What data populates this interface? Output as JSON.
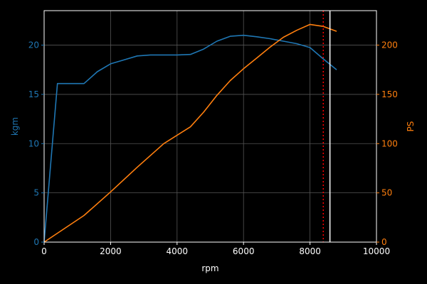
{
  "chart_data": {
    "type": "line",
    "background": "#000000",
    "grid": true,
    "x": {
      "label": "rpm",
      "lim": [
        0,
        10000
      ],
      "ticks": [
        0,
        2000,
        4000,
        6000,
        8000,
        10000
      ],
      "tick_labels": [
        "0",
        "2000",
        "4000",
        "6000",
        "8000",
        "10000"
      ],
      "color": "#ffffff"
    },
    "y_left": {
      "label": "kgm",
      "lim": [
        0,
        23.5
      ],
      "ticks": [
        0,
        5,
        10,
        15,
        20
      ],
      "tick_labels": [
        "0",
        "5",
        "10",
        "15",
        "20"
      ],
      "color": "#1f77b4"
    },
    "y_right": {
      "label": "PS",
      "lim": [
        0,
        235
      ],
      "ticks": [
        0,
        50,
        100,
        150,
        200
      ],
      "tick_labels": [
        "0",
        "50",
        "100",
        "150",
        "200"
      ],
      "color": "#ff7f0e"
    },
    "series": [
      {
        "axis": "left",
        "color": "#1f77b4",
        "x": [
          0,
          400,
          1200,
          1600,
          2000,
          2400,
          2800,
          3200,
          3600,
          4000,
          4400,
          4800,
          5200,
          5600,
          6000,
          6400,
          6800,
          7200,
          7600,
          8000,
          8400,
          8800
        ],
        "y": [
          0,
          16.1,
          16.1,
          17.3,
          18.1,
          18.5,
          18.9,
          19.0,
          19.0,
          19.0,
          19.05,
          19.6,
          20.4,
          20.9,
          21.0,
          20.85,
          20.65,
          20.4,
          20.15,
          19.75,
          18.6,
          17.5
        ]
      },
      {
        "axis": "right",
        "color": "#ff7f0e",
        "x": [
          0,
          1200,
          2000,
          2800,
          3600,
          4400,
          4800,
          5200,
          5600,
          6000,
          6400,
          6800,
          7200,
          7600,
          8000,
          8400,
          8800
        ],
        "y": [
          0,
          27,
          51,
          76,
          100,
          117,
          132,
          149,
          164,
          176,
          187,
          198,
          208,
          215,
          221,
          219,
          214
        ]
      }
    ],
    "annotations": [
      {
        "type": "vline",
        "x": 8400,
        "color": "#ff0000",
        "style": "dotted"
      },
      {
        "type": "vline",
        "x": 8600,
        "color": "#ffffff",
        "style": "solid"
      }
    ]
  }
}
